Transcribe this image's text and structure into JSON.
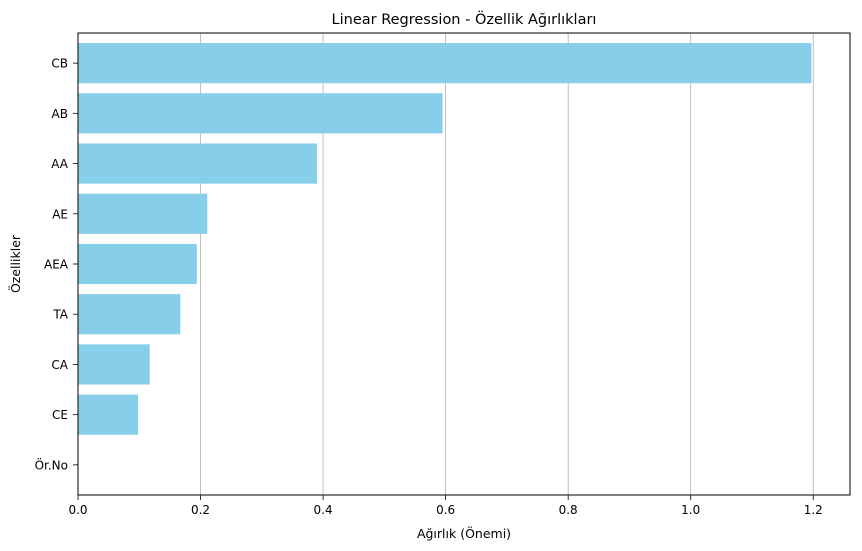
{
  "chart_data": {
    "type": "bar",
    "orientation": "horizontal",
    "title": "Linear Regression - Özellik Ağırlıkları",
    "xlabel": "Ağırlık (Önemi)",
    "ylabel": "Özellikler",
    "categories": [
      "CB",
      "AB",
      "AA",
      "AE",
      "AEA",
      "TA",
      "CA",
      "CE",
      "Ör.No"
    ],
    "values": [
      1.197,
      0.595,
      0.39,
      0.211,
      0.194,
      0.167,
      0.117,
      0.098,
      0.0
    ],
    "xlim": [
      0,
      1.26
    ],
    "xticks": [
      0.0,
      0.2,
      0.4,
      0.6,
      0.8,
      1.0,
      1.2
    ],
    "xtick_labels": [
      "0.0",
      "0.2",
      "0.4",
      "0.6",
      "0.8",
      "1.0",
      "1.2"
    ],
    "grid": "vertical",
    "bar_color": "#87CEEB",
    "grid_color": "#b0b0b0"
  }
}
